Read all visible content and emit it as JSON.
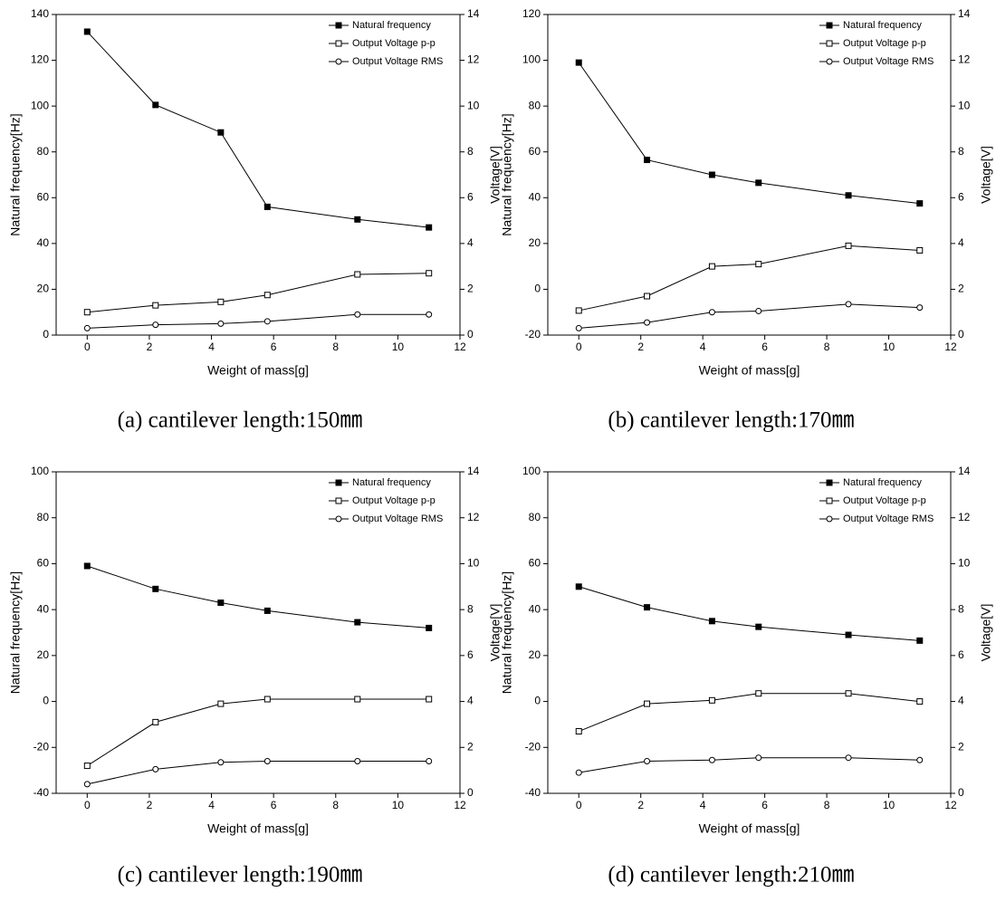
{
  "chart_data": [
    {
      "type": "line",
      "caption": "(a)  cantilever  length:150㎜",
      "x_label": "Weight of mass[g]",
      "y_label": "Natural frequency[Hz]",
      "y2_label": "Voltage[V]",
      "x": [
        0,
        2.2,
        4.3,
        5.8,
        8.7,
        11
      ],
      "xlim": [
        -1,
        12
      ],
      "xticks": [
        0,
        2,
        4,
        6,
        8,
        10,
        12
      ],
      "ylim": [
        0,
        140
      ],
      "yticks": [
        0,
        20,
        40,
        60,
        80,
        100,
        120,
        140
      ],
      "y2lim": [
        0,
        14
      ],
      "y2ticks": [
        0,
        2,
        4,
        6,
        8,
        10,
        12,
        14
      ],
      "series": [
        {
          "name": "Natural frequency",
          "color": "#000000",
          "marker": "square-filled",
          "values": [
            132.5,
            100.5,
            88.5,
            56,
            50.5,
            47
          ]
        },
        {
          "name": "Output Voltage p-p",
          "color": "#000000",
          "marker": "square-open",
          "axis": "y2",
          "values": [
            1.0,
            1.3,
            1.45,
            1.75,
            2.65,
            2.7
          ]
        },
        {
          "name": "Output Voltage RMS",
          "color": "#000000",
          "marker": "circle-open",
          "axis": "y2",
          "values": [
            0.3,
            0.45,
            0.5,
            0.6,
            0.9,
            0.9
          ]
        }
      ]
    },
    {
      "type": "line",
      "caption": "(b)  cantilever  length:170㎜",
      "x_label": "Weight of mass[g]",
      "y_label": "Natural frequency[Hz]",
      "y2_label": "Voltage[V]",
      "x": [
        0,
        2.2,
        4.3,
        5.8,
        8.7,
        11
      ],
      "xlim": [
        -1,
        12
      ],
      "xticks": [
        0,
        2,
        4,
        6,
        8,
        10,
        12
      ],
      "ylim": [
        -20,
        120
      ],
      "yticks": [
        -20,
        0,
        20,
        40,
        60,
        80,
        100,
        120
      ],
      "y2lim": [
        0,
        14
      ],
      "y2ticks": [
        0,
        2,
        4,
        6,
        8,
        10,
        12,
        14
      ],
      "series": [
        {
          "name": "Natural frequency",
          "color": "#000000",
          "marker": "square-filled",
          "values": [
            99,
            56.5,
            50,
            46.5,
            41,
            37.5
          ]
        },
        {
          "name": "Output Voltage p-p",
          "color": "#000000",
          "marker": "square-open",
          "axis": "y2",
          "values": [
            1.07,
            1.7,
            3.0,
            3.1,
            3.9,
            3.7
          ]
        },
        {
          "name": "Output Voltage RMS",
          "color": "#000000",
          "marker": "circle-open",
          "axis": "y2",
          "values": [
            0.3,
            0.55,
            1.0,
            1.05,
            1.35,
            1.2
          ]
        }
      ]
    },
    {
      "type": "line",
      "caption": "(c)  cantilever  length:190㎜",
      "x_label": "Weight of mass[g]",
      "y_label": "Natural frequency[Hz]",
      "y2_label": "Voltage[V]",
      "x": [
        0,
        2.2,
        4.3,
        5.8,
        8.7,
        11
      ],
      "xlim": [
        -1,
        12
      ],
      "xticks": [
        0,
        2,
        4,
        6,
        8,
        10,
        12
      ],
      "ylim": [
        -40,
        100
      ],
      "yticks": [
        -40,
        -20,
        0,
        20,
        40,
        60,
        80,
        100
      ],
      "y2lim": [
        0,
        14
      ],
      "y2ticks": [
        0,
        2,
        4,
        6,
        8,
        10,
        12,
        14
      ],
      "series": [
        {
          "name": "Natural frequency",
          "color": "#000000",
          "marker": "square-filled",
          "values": [
            59,
            49,
            43,
            39.5,
            34.5,
            32
          ]
        },
        {
          "name": "Output Voltage p-p",
          "color": "#000000",
          "marker": "square-open",
          "axis": "y2",
          "values": [
            1.2,
            3.1,
            3.9,
            4.1,
            4.1,
            4.1
          ]
        },
        {
          "name": "Output Voltage RMS",
          "color": "#000000",
          "marker": "circle-open",
          "axis": "y2",
          "values": [
            0.4,
            1.05,
            1.35,
            1.4,
            1.4,
            1.4
          ]
        }
      ]
    },
    {
      "type": "line",
      "caption": "(d)  cantilever  length:210㎜",
      "x_label": "Weight of mass[g]",
      "y_label": "Natural frequency[Hz]",
      "y2_label": "Voltage[V]",
      "x": [
        0,
        2.2,
        4.3,
        5.8,
        8.7,
        11
      ],
      "xlim": [
        -1,
        12
      ],
      "xticks": [
        0,
        2,
        4,
        6,
        8,
        10,
        12
      ],
      "ylim": [
        -40,
        100
      ],
      "yticks": [
        -40,
        -20,
        0,
        20,
        40,
        60,
        80,
        100
      ],
      "y2lim": [
        0,
        14
      ],
      "y2ticks": [
        0,
        2,
        4,
        6,
        8,
        10,
        12,
        14
      ],
      "series": [
        {
          "name": "Natural frequency",
          "color": "#000000",
          "marker": "square-filled",
          "values": [
            50,
            41,
            35,
            32.5,
            29,
            26.5
          ]
        },
        {
          "name": "Output Voltage p-p",
          "color": "#000000",
          "marker": "square-open",
          "axis": "y2",
          "values": [
            2.7,
            3.9,
            4.05,
            4.35,
            4.35,
            4.0
          ]
        },
        {
          "name": "Output Voltage RMS",
          "color": "#000000",
          "marker": "circle-open",
          "axis": "y2",
          "values": [
            0.9,
            1.4,
            1.45,
            1.55,
            1.55,
            1.45
          ]
        }
      ]
    }
  ]
}
